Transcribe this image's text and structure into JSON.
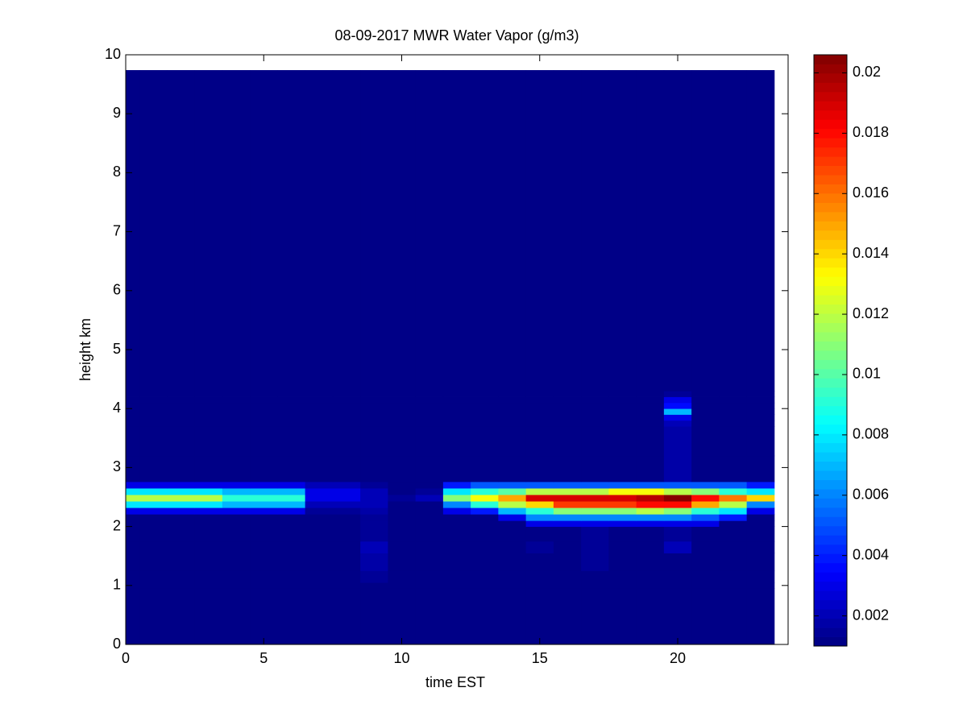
{
  "chart_data": {
    "type": "heatmap",
    "title": "08-09-2017 MWR Water Vapor (g/m3)",
    "xlabel": "time EST",
    "ylabel": "height km",
    "colormap": "jet",
    "colormap_levels": 64,
    "xlim": [
      0,
      24
    ],
    "xticks": [
      0,
      5,
      10,
      15,
      20
    ],
    "ylim": [
      0,
      10
    ],
    "yticks": [
      0,
      1,
      2,
      3,
      4,
      5,
      6,
      7,
      8,
      9,
      10
    ],
    "clim": [
      0.001,
      0.0206
    ],
    "cticks": [
      0.002,
      0.004,
      0.006,
      0.008,
      0.01,
      0.012,
      0.014,
      0.016,
      0.018,
      0.02
    ],
    "x_edges": [
      0,
      0.5,
      1.5,
      2.5,
      3.5,
      4.5,
      5.5,
      6.5,
      7.5,
      8.5,
      9.5,
      10.5,
      11.5,
      12.5,
      13.5,
      14.5,
      15.5,
      16.5,
      17.5,
      18.5,
      19.5,
      20.5,
      21.5,
      22.5,
      23.5
    ],
    "y_edges": [
      0,
      0.95,
      1.05,
      1.25,
      1.55,
      1.75,
      2.0,
      2.1,
      2.21,
      2.32,
      2.43,
      2.54,
      2.65,
      2.76,
      3.2,
      3.7,
      3.8,
      3.9,
      4.0,
      4.1,
      4.2,
      4.3,
      9.74
    ],
    "z": [
      [
        0.001,
        0.001,
        0.001,
        0.001,
        0.001,
        0.001,
        0.001,
        0.001,
        0.001,
        0.001,
        0.001,
        0.001,
        0.001,
        0.001,
        0.001,
        0.001,
        0.001,
        0.001,
        0.001,
        0.001,
        0.001,
        0.001,
        0.001,
        0.001
      ],
      [
        0.001,
        0.001,
        0.001,
        0.001,
        0.001,
        0.001,
        0.001,
        0.001,
        0.001,
        0.0012,
        0.001,
        0.001,
        0.001,
        0.001,
        0.001,
        0.001,
        0.001,
        0.001,
        0.001,
        0.001,
        0.001,
        0.001,
        0.001,
        0.001
      ],
      [
        0.001,
        0.001,
        0.001,
        0.001,
        0.001,
        0.001,
        0.001,
        0.001,
        0.001,
        0.0015,
        0.001,
        0.001,
        0.001,
        0.001,
        0.001,
        0.001,
        0.001,
        0.001,
        0.001,
        0.001,
        0.001,
        0.001,
        0.001,
        0.001
      ],
      [
        0.001,
        0.001,
        0.001,
        0.001,
        0.001,
        0.001,
        0.001,
        0.001,
        0.001,
        0.0018,
        0.001,
        0.001,
        0.001,
        0.001,
        0.001,
        0.001,
        0.001,
        0.0015,
        0.001,
        0.001,
        0.0013,
        0.001,
        0.001,
        0.001
      ],
      [
        0.001,
        0.001,
        0.001,
        0.001,
        0.001,
        0.001,
        0.001,
        0.001,
        0.001,
        0.002,
        0.001,
        0.001,
        0.001,
        0.001,
        0.001,
        0.0015,
        0.001,
        0.0015,
        0.001,
        0.001,
        0.002,
        0.001,
        0.001,
        0.001
      ],
      [
        0.001,
        0.001,
        0.001,
        0.001,
        0.001,
        0.001,
        0.001,
        0.001,
        0.001,
        0.0015,
        0.001,
        0.001,
        0.001,
        0.001,
        0.001,
        0.001,
        0.001,
        0.0015,
        0.001,
        0.001,
        0.0015,
        0.001,
        0.001,
        0.001
      ],
      [
        0.001,
        0.001,
        0.001,
        0.001,
        0.001,
        0.001,
        0.001,
        0.001,
        0.001,
        0.0015,
        0.001,
        0.001,
        0.001,
        0.001,
        0.001,
        0.003,
        0.003,
        0.003,
        0.003,
        0.003,
        0.003,
        0.003,
        0.001,
        0.001
      ],
      [
        0.001,
        0.001,
        0.001,
        0.001,
        0.001,
        0.001,
        0.001,
        0.001,
        0.001,
        0.0015,
        0.001,
        0.001,
        0.001,
        0.001,
        0.003,
        0.006,
        0.006,
        0.006,
        0.006,
        0.006,
        0.006,
        0.005,
        0.004,
        0.001
      ],
      [
        0.003,
        0.003,
        0.003,
        0.003,
        0.003,
        0.003,
        0.003,
        0.0015,
        0.0015,
        0.0018,
        0.0012,
        0.001,
        0.003,
        0.004,
        0.007,
        0.009,
        0.011,
        0.011,
        0.011,
        0.012,
        0.011,
        0.009,
        0.008,
        0.003
      ],
      [
        0.008,
        0.008,
        0.008,
        0.008,
        0.007,
        0.007,
        0.007,
        0.002,
        0.002,
        0.002,
        0.0012,
        0.0013,
        0.006,
        0.009,
        0.012,
        0.014,
        0.017,
        0.017,
        0.017,
        0.018,
        0.018,
        0.015,
        0.012,
        0.006
      ],
      [
        0.012,
        0.012,
        0.012,
        0.012,
        0.009,
        0.009,
        0.009,
        0.003,
        0.003,
        0.002,
        0.0015,
        0.002,
        0.011,
        0.013,
        0.015,
        0.019,
        0.019,
        0.019,
        0.019,
        0.0195,
        0.0205,
        0.018,
        0.016,
        0.014
      ],
      [
        0.008,
        0.008,
        0.008,
        0.008,
        0.007,
        0.007,
        0.007,
        0.003,
        0.003,
        0.002,
        0.0012,
        0.0015,
        0.008,
        0.009,
        0.01,
        0.012,
        0.012,
        0.012,
        0.013,
        0.013,
        0.012,
        0.011,
        0.009,
        0.008
      ],
      [
        0.003,
        0.003,
        0.003,
        0.003,
        0.003,
        0.003,
        0.003,
        0.002,
        0.002,
        0.0015,
        0.001,
        0.001,
        0.004,
        0.005,
        0.005,
        0.005,
        0.005,
        0.005,
        0.005,
        0.005,
        0.005,
        0.005,
        0.005,
        0.004
      ],
      [
        0.001,
        0.001,
        0.001,
        0.001,
        0.001,
        0.001,
        0.001,
        0.001,
        0.001,
        0.001,
        0.001,
        0.001,
        0.001,
        0.001,
        0.001,
        0.001,
        0.001,
        0.001,
        0.001,
        0.001,
        0.0017,
        0.001,
        0.001,
        0.001
      ],
      [
        0.001,
        0.001,
        0.001,
        0.001,
        0.001,
        0.001,
        0.001,
        0.001,
        0.001,
        0.001,
        0.001,
        0.001,
        0.001,
        0.001,
        0.001,
        0.001,
        0.001,
        0.001,
        0.001,
        0.001,
        0.0017,
        0.001,
        0.001,
        0.001
      ],
      [
        0.001,
        0.001,
        0.001,
        0.001,
        0.001,
        0.001,
        0.001,
        0.001,
        0.001,
        0.001,
        0.001,
        0.001,
        0.001,
        0.001,
        0.001,
        0.001,
        0.001,
        0.001,
        0.001,
        0.001,
        0.002,
        0.001,
        0.001,
        0.001
      ],
      [
        0.001,
        0.001,
        0.001,
        0.001,
        0.001,
        0.001,
        0.001,
        0.001,
        0.001,
        0.001,
        0.001,
        0.001,
        0.001,
        0.001,
        0.001,
        0.001,
        0.001,
        0.001,
        0.001,
        0.001,
        0.003,
        0.001,
        0.001,
        0.001
      ],
      [
        0.001,
        0.001,
        0.001,
        0.001,
        0.001,
        0.001,
        0.001,
        0.001,
        0.001,
        0.001,
        0.001,
        0.001,
        0.001,
        0.001,
        0.001,
        0.001,
        0.001,
        0.001,
        0.001,
        0.001,
        0.007,
        0.001,
        0.001,
        0.001
      ],
      [
        0.001,
        0.001,
        0.001,
        0.001,
        0.001,
        0.001,
        0.001,
        0.001,
        0.001,
        0.001,
        0.001,
        0.001,
        0.001,
        0.001,
        0.001,
        0.001,
        0.001,
        0.001,
        0.001,
        0.001,
        0.0035,
        0.0013,
        0.001,
        0.001
      ],
      [
        0.001,
        0.001,
        0.001,
        0.001,
        0.001,
        0.001,
        0.001,
        0.001,
        0.001,
        0.001,
        0.001,
        0.001,
        0.001,
        0.001,
        0.001,
        0.001,
        0.001,
        0.001,
        0.001,
        0.001,
        0.003,
        0.0013,
        0.001,
        0.001
      ],
      [
        0.001,
        0.001,
        0.001,
        0.001,
        0.001,
        0.001,
        0.001,
        0.001,
        0.001,
        0.001,
        0.001,
        0.001,
        0.001,
        0.001,
        0.001,
        0.001,
        0.001,
        0.001,
        0.001,
        0.001,
        0.0015,
        0.001,
        0.001,
        0.001
      ],
      [
        0.001,
        0.001,
        0.001,
        0.001,
        0.001,
        0.001,
        0.001,
        0.001,
        0.001,
        0.001,
        0.001,
        0.001,
        0.001,
        0.001,
        0.001,
        0.001,
        0.001,
        0.001,
        0.001,
        0.001,
        0.001,
        0.001,
        0.001,
        0.001
      ]
    ]
  }
}
